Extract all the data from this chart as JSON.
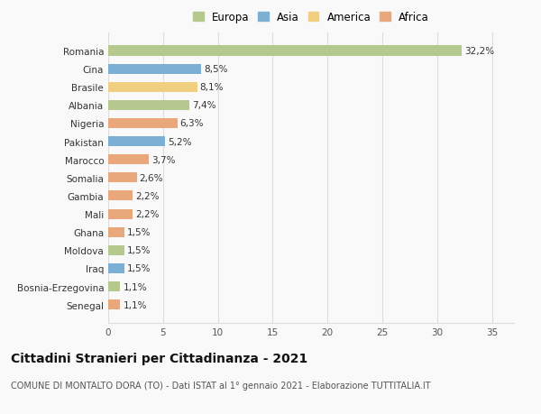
{
  "countries": [
    "Romania",
    "Cina",
    "Brasile",
    "Albania",
    "Nigeria",
    "Pakistan",
    "Marocco",
    "Somalia",
    "Gambia",
    "Mali",
    "Ghana",
    "Moldova",
    "Iraq",
    "Bosnia-Erzegovina",
    "Senegal"
  ],
  "values": [
    32.2,
    8.5,
    8.1,
    7.4,
    6.3,
    5.2,
    3.7,
    2.6,
    2.2,
    2.2,
    1.5,
    1.5,
    1.5,
    1.1,
    1.1
  ],
  "labels": [
    "32,2%",
    "8,5%",
    "8,1%",
    "7,4%",
    "6,3%",
    "5,2%",
    "3,7%",
    "2,6%",
    "2,2%",
    "2,2%",
    "1,5%",
    "1,5%",
    "1,5%",
    "1,1%",
    "1,1%"
  ],
  "continents": [
    "Europa",
    "Asia",
    "America",
    "Europa",
    "Africa",
    "Asia",
    "Africa",
    "Africa",
    "Africa",
    "Africa",
    "Africa",
    "Europa",
    "Asia",
    "Europa",
    "Africa"
  ],
  "colors": {
    "Europa": "#b5c98e",
    "Asia": "#7bafd4",
    "America": "#f0d080",
    "Africa": "#e8a87c"
  },
  "legend_order": [
    "Europa",
    "Asia",
    "America",
    "Africa"
  ],
  "xlim": [
    0,
    37
  ],
  "xticks": [
    0,
    5,
    10,
    15,
    20,
    25,
    30,
    35
  ],
  "title": "Cittadini Stranieri per Cittadinanza - 2021",
  "subtitle": "COMUNE DI MONTALTO DORA (TO) - Dati ISTAT al 1° gennaio 2021 - Elaborazione TUTTITALIA.IT",
  "bg_color": "#f9f9f9",
  "grid_color": "#dddddd",
  "bar_height": 0.55,
  "label_fontsize": 7.5,
  "title_fontsize": 10,
  "subtitle_fontsize": 7,
  "legend_fontsize": 8.5
}
